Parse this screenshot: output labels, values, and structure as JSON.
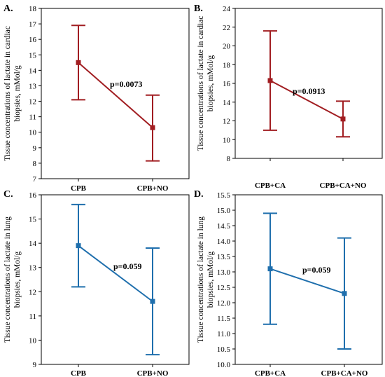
{
  "chart_data": [
    {
      "type": "errorbar",
      "panel": "A.",
      "ylabel": [
        "Tissue concentrations of lactate in cardiac",
        "biopsies, mMol/g"
      ],
      "categories": [
        "CPB",
        "CPB+NO"
      ],
      "mean": [
        14.5,
        10.3
      ],
      "lower": [
        12.1,
        8.15
      ],
      "upper": [
        16.9,
        12.4
      ],
      "ylim": [
        7,
        18
      ],
      "yticks": [
        "7",
        "8",
        "9",
        "10",
        "11",
        "12",
        "13",
        "14",
        "15",
        "16",
        "17",
        "18"
      ],
      "annotation": "p=0.0073",
      "color": "#a11d21"
    },
    {
      "type": "errorbar",
      "panel": "B.",
      "ylabel": [
        "Tissue concentrations of lactate in cardiac",
        "biopsies, mMol/g"
      ],
      "categories": [
        "CPB+CA",
        "CPB+CA+NO"
      ],
      "mean": [
        16.3,
        12.2
      ],
      "lower": [
        11.0,
        10.3
      ],
      "upper": [
        21.6,
        14.1
      ],
      "ylim": [
        8,
        24
      ],
      "yticks": [
        "8",
        "10",
        "12",
        "14",
        "16",
        "18",
        "20",
        "22",
        "24"
      ],
      "annotation": "p=0.0913",
      "color": "#a11d21"
    },
    {
      "type": "errorbar",
      "panel": "C.",
      "ylabel": [
        "Tissue concentrations of lactate in lung",
        "biopsies, mMol/g"
      ],
      "categories": [
        "CPB",
        "CPB+NO"
      ],
      "mean": [
        13.9,
        11.6
      ],
      "lower": [
        12.2,
        9.4
      ],
      "upper": [
        15.6,
        13.8
      ],
      "ylim": [
        9,
        16
      ],
      "yticks": [
        "9",
        "10",
        "11",
        "12",
        "13",
        "14",
        "15",
        "16"
      ],
      "annotation": "p=0.059",
      "color": "#1f6fad"
    },
    {
      "type": "errorbar",
      "panel": "D.",
      "ylabel": [
        "Tissue concentrations of lactate in lung",
        "biopsies, mMol/g"
      ],
      "categories": [
        "CPB+CA",
        "CPB+CA+NO"
      ],
      "mean": [
        13.1,
        12.3
      ],
      "lower": [
        11.3,
        10.5
      ],
      "upper": [
        14.9,
        14.1
      ],
      "ylim": [
        10.0,
        15.5
      ],
      "yticks": [
        "10.0",
        "10.5",
        "11.0",
        "11.5",
        "12.0",
        "12.5",
        "13.0",
        "13.5",
        "14.0",
        "14.5",
        "15.0",
        "15.5"
      ],
      "annotation": "p=0.059",
      "color": "#1f6fad"
    }
  ]
}
